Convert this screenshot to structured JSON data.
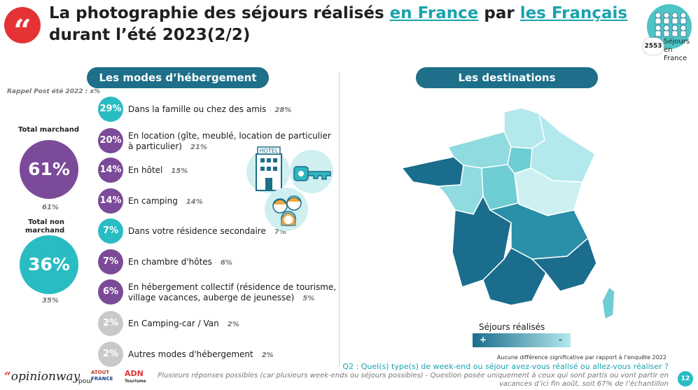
{
  "header": {
    "title_part1": "La photographie des séjours réalisés ",
    "title_link1": "en France",
    "title_part2": " par ",
    "title_link2": "les Français",
    "title_line2": "durant l’été 2023(2/2)",
    "sample_count": "2553",
    "sample_label_line1": "Séjours",
    "sample_label_line2": "en France"
  },
  "left": {
    "section_title": "Les modes d’hébergement",
    "recall": "Rappel Post été 2022 : x%",
    "total_marchand": {
      "label": "Total marchand",
      "value": "61%",
      "prev": "61%"
    },
    "total_non_marchand": {
      "label_line1": "Total non",
      "label_line2": "marchand",
      "value": "36%",
      "prev": "35%"
    },
    "items": [
      {
        "value": "29%",
        "label": "Dans la famille ou chez des amis",
        "prev": "28%",
        "color": "teal"
      },
      {
        "value": "20%",
        "label": "En location (gîte, meublé, location de particulier",
        "label2": "à particulier)",
        "prev": "21%",
        "color": "purple"
      },
      {
        "value": "14%",
        "label": "En hôtel",
        "prev": "15%",
        "color": "purple"
      },
      {
        "value": "14%",
        "label": "En camping",
        "prev": "14%",
        "color": "purple"
      },
      {
        "value": "7%",
        "label": "Dans votre résidence secondaire",
        "prev": "7%",
        "color": "teal"
      },
      {
        "value": "7%",
        "label": "En chambre d'hôtes",
        "prev": "6%",
        "color": "purple"
      },
      {
        "value": "6%",
        "label": "En hébergement collectif (résidence de tourisme,",
        "label2": "village vacances, auberge de jeunesse)",
        "prev": "5%",
        "color": "purple"
      },
      {
        "value": "2%",
        "label": "En Camping-car / Van",
        "prev": "2%",
        "color": "grey"
      },
      {
        "value": "2%",
        "label": "Autres modes d'hébergement",
        "prev": "2%",
        "color": "grey"
      }
    ],
    "hotel_sign": "HOTEL"
  },
  "right": {
    "section_title": "Les destinations",
    "legend_title": "Séjours réalisés",
    "legend_plus": "+",
    "legend_minus": "-"
  },
  "footer": {
    "note": "Aucune différence significative par rapport à l’enquête 2022",
    "question": "Q2 : Quel(s) type(s) de week-end ou séjour avez-vous réalisé ou allez-vous réaliser ?",
    "detail_line1": "Plusieurs réponses possibles (car plusieurs week-ends ou séjours possibles) - Question posée uniquement à ceux qui sont partis ou vont partir en",
    "detail_line2": "vacances d’ici fin août, soit 67% de l’échantillon",
    "brand": "opinionway",
    "pour": "pour",
    "atout_line1": "ATOUT",
    "atout_line2": "FRANCE",
    "adn_line1": "ADN",
    "adn_line2": "Tourisme",
    "page_number": "12"
  },
  "colors": {
    "teal": "#29bcc2",
    "purple": "#7b4a98",
    "grey": "#c9c9c9",
    "pill": "#1d6f8a",
    "red": "#e53335"
  }
}
